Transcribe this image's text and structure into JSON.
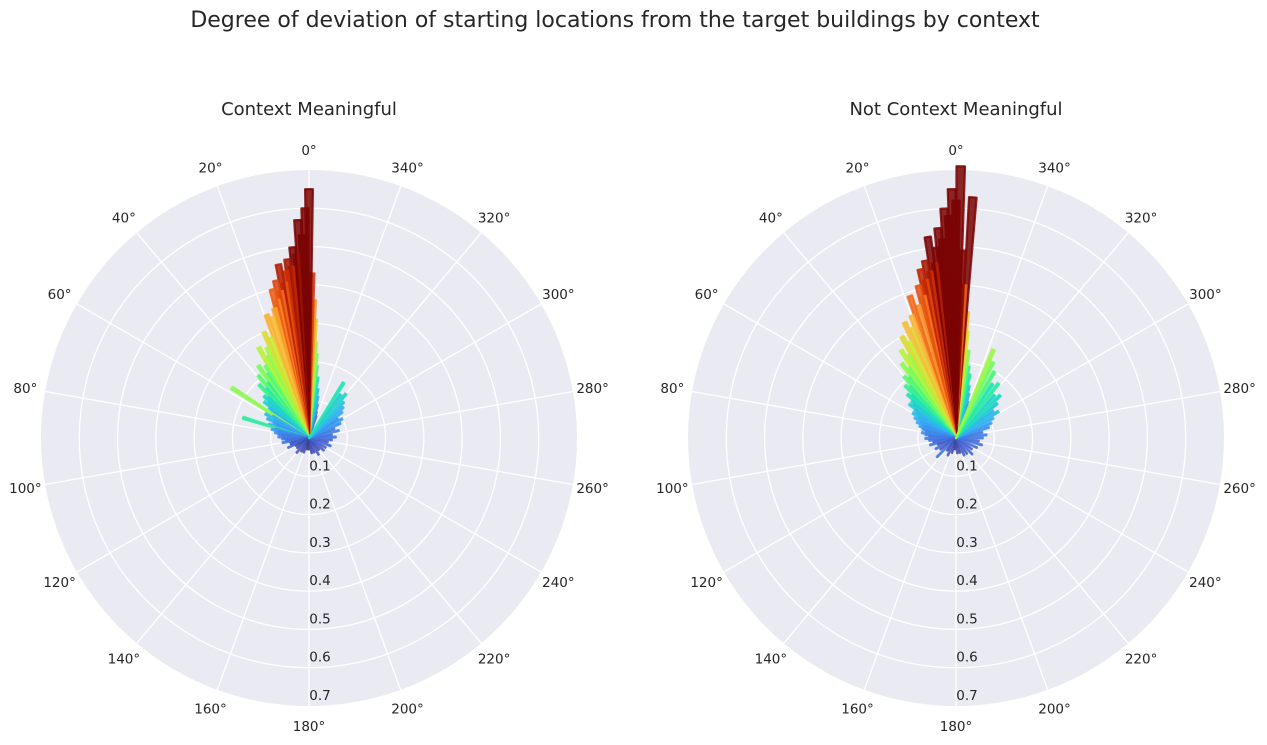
{
  "chart_data": {
    "title": "Degree of deviation of starting locations from the target buildings by context",
    "type": "polar-bar",
    "angle_ticks": [
      "0°",
      "20°",
      "40°",
      "60°",
      "80°",
      "100°",
      "120°",
      "140°",
      "160°",
      "180°",
      "200°",
      "220°",
      "240°",
      "260°",
      "280°",
      "300°",
      "320°",
      "340°"
    ],
    "angle_tick_values": [
      0,
      20,
      40,
      60,
      80,
      100,
      120,
      140,
      160,
      180,
      200,
      220,
      240,
      260,
      280,
      300,
      320,
      340
    ],
    "radial_ticks": [
      "0.1",
      "0.2",
      "0.3",
      "0.4",
      "0.5",
      "0.6",
      "0.7"
    ],
    "radial_tick_values": [
      0.1,
      0.2,
      0.3,
      0.4,
      0.5,
      0.6,
      0.7
    ],
    "rlim": [
      0,
      0.7
    ],
    "theta_zero_location": "N",
    "theta_direction": "counterclockwise",
    "grid": true,
    "colormap": [
      "#30123b",
      "#4662d7",
      "#36aaf9",
      "#1ae4b6",
      "#72fe5e",
      "#c8ef34",
      "#faba39",
      "#f66b19",
      "#ca2a04",
      "#7a0403"
    ],
    "panels": [
      {
        "title": "Context Meaningful",
        "bars": [
          {
            "angle": -18,
            "value": 0.06
          },
          {
            "angle": -16,
            "value": 0.07
          },
          {
            "angle": -14,
            "value": 0.09
          },
          {
            "angle": -12,
            "value": 0.11
          },
          {
            "angle": -10,
            "value": 0.13
          },
          {
            "angle": -8,
            "value": 0.16
          },
          {
            "angle": -6,
            "value": 0.19
          },
          {
            "angle": -5,
            "value": 0.22
          },
          {
            "angle": -4,
            "value": 0.25
          },
          {
            "angle": -3,
            "value": 0.31
          },
          {
            "angle": -2,
            "value": 0.36
          },
          {
            "angle": -1,
            "value": 0.43
          },
          {
            "angle": 0,
            "value": 0.65
          },
          {
            "angle": 1,
            "value": 0.6
          },
          {
            "angle": 2,
            "value": 0.53
          },
          {
            "angle": 3,
            "value": 0.57
          },
          {
            "angle": 4,
            "value": 0.48
          },
          {
            "angle": 5,
            "value": 0.5
          },
          {
            "angle": 6,
            "value": 0.45
          },
          {
            "angle": 7,
            "value": 0.47
          },
          {
            "angle": 8,
            "value": 0.44
          },
          {
            "angle": 9,
            "value": 0.41
          },
          {
            "angle": 10,
            "value": 0.46
          },
          {
            "angle": 11,
            "value": 0.39
          },
          {
            "angle": 12,
            "value": 0.42
          },
          {
            "angle": 13,
            "value": 0.37
          },
          {
            "angle": 14,
            "value": 0.4
          },
          {
            "angle": 15,
            "value": 0.35
          },
          {
            "angle": 17,
            "value": 0.33
          },
          {
            "angle": 19,
            "value": 0.34
          },
          {
            "angle": 21,
            "value": 0.28
          },
          {
            "angle": 23,
            "value": 0.3
          },
          {
            "angle": 25,
            "value": 0.26
          },
          {
            "angle": 27,
            "value": 0.24
          },
          {
            "angle": 29,
            "value": 0.27
          },
          {
            "angle": 31,
            "value": 0.22
          },
          {
            "angle": 33,
            "value": 0.2
          },
          {
            "angle": 35,
            "value": 0.23
          },
          {
            "angle": 37,
            "value": 0.18
          },
          {
            "angle": 39,
            "value": 0.21
          },
          {
            "angle": 41,
            "value": 0.17
          },
          {
            "angle": 43,
            "value": 0.19
          },
          {
            "angle": 45,
            "value": 0.15
          },
          {
            "angle": 47,
            "value": 0.16
          },
          {
            "angle": 49,
            "value": 0.14
          },
          {
            "angle": 51,
            "value": 0.15
          },
          {
            "angle": 53,
            "value": 0.13
          },
          {
            "angle": 55,
            "value": 0.12
          },
          {
            "angle": 57,
            "value": 0.24
          },
          {
            "angle": 59,
            "value": 0.11
          },
          {
            "angle": 61,
            "value": 0.13
          },
          {
            "angle": 63,
            "value": 0.1
          },
          {
            "angle": 65,
            "value": 0.12
          },
          {
            "angle": 67,
            "value": 0.1
          },
          {
            "angle": 69,
            "value": 0.09
          },
          {
            "angle": 71,
            "value": 0.11
          },
          {
            "angle": 73,
            "value": 0.18
          },
          {
            "angle": 75,
            "value": 0.09
          },
          {
            "angle": 77,
            "value": 0.1
          },
          {
            "angle": 79,
            "value": 0.08
          },
          {
            "angle": 81,
            "value": 0.09
          },
          {
            "angle": 83,
            "value": 0.08
          },
          {
            "angle": 85,
            "value": 0.07
          },
          {
            "angle": 88,
            "value": 0.08
          },
          {
            "angle": 92,
            "value": 0.07
          },
          {
            "angle": 96,
            "value": 0.06
          },
          {
            "angle": 100,
            "value": 0.07
          },
          {
            "angle": 105,
            "value": 0.05
          },
          {
            "angle": 110,
            "value": 0.05
          },
          {
            "angle": 115,
            "value": 0.06
          },
          {
            "angle": 120,
            "value": 0.04
          },
          {
            "angle": 130,
            "value": 0.04
          },
          {
            "angle": 140,
            "value": 0.05
          },
          {
            "angle": 150,
            "value": 0.04
          },
          {
            "angle": 160,
            "value": 0.04
          },
          {
            "angle": 170,
            "value": 0.03
          },
          {
            "angle": 180,
            "value": 0.03
          },
          {
            "angle": 190,
            "value": 0.04
          },
          {
            "angle": 200,
            "value": 0.04
          },
          {
            "angle": 210,
            "value": 0.05
          },
          {
            "angle": 220,
            "value": 0.04
          },
          {
            "angle": 230,
            "value": 0.05
          },
          {
            "angle": 240,
            "value": 0.05
          },
          {
            "angle": 250,
            "value": 0.06
          },
          {
            "angle": 258,
            "value": 0.05
          },
          {
            "angle": 265,
            "value": 0.06
          },
          {
            "angle": 272,
            "value": 0.07
          },
          {
            "angle": 278,
            "value": 0.06
          },
          {
            "angle": 284,
            "value": 0.08
          },
          {
            "angle": 290,
            "value": 0.07
          },
          {
            "angle": 295,
            "value": 0.09
          },
          {
            "angle": 300,
            "value": 0.1
          },
          {
            "angle": 304,
            "value": 0.09
          },
          {
            "angle": 308,
            "value": 0.11
          },
          {
            "angle": 312,
            "value": 0.12
          },
          {
            "angle": 316,
            "value": 0.13
          },
          {
            "angle": 320,
            "value": 0.15
          },
          {
            "angle": 324,
            "value": 0.14
          },
          {
            "angle": 328,
            "value": 0.17
          }
        ]
      },
      {
        "title": "Not Context Meaningful",
        "bars": [
          {
            "angle": -20,
            "value": 0.09
          },
          {
            "angle": -18,
            "value": 0.1
          },
          {
            "angle": -16,
            "value": 0.12
          },
          {
            "angle": -14,
            "value": 0.14
          },
          {
            "angle": -12,
            "value": 0.17
          },
          {
            "angle": -10,
            "value": 0.19
          },
          {
            "angle": -8,
            "value": 0.23
          },
          {
            "angle": -6,
            "value": 0.28
          },
          {
            "angle": -5,
            "value": 0.33
          },
          {
            "angle": -4,
            "value": 0.63
          },
          {
            "angle": -3,
            "value": 0.4
          },
          {
            "angle": -2,
            "value": 0.49
          },
          {
            "angle": -1,
            "value": 0.71
          },
          {
            "angle": 0,
            "value": 0.62
          },
          {
            "angle": 1,
            "value": 0.65
          },
          {
            "angle": 2,
            "value": 0.58
          },
          {
            "angle": 3,
            "value": 0.6
          },
          {
            "angle": 4,
            "value": 0.52
          },
          {
            "angle": 5,
            "value": 0.55
          },
          {
            "angle": 6,
            "value": 0.5
          },
          {
            "angle": 7,
            "value": 0.46
          },
          {
            "angle": 8,
            "value": 0.53
          },
          {
            "angle": 9,
            "value": 0.44
          },
          {
            "angle": 10,
            "value": 0.47
          },
          {
            "angle": 11,
            "value": 0.42
          },
          {
            "angle": 12,
            "value": 0.45
          },
          {
            "angle": 13,
            "value": 0.38
          },
          {
            "angle": 14,
            "value": 0.41
          },
          {
            "angle": 16,
            "value": 0.36
          },
          {
            "angle": 18,
            "value": 0.39
          },
          {
            "angle": 20,
            "value": 0.34
          },
          {
            "angle": 22,
            "value": 0.31
          },
          {
            "angle": 24,
            "value": 0.33
          },
          {
            "angle": 26,
            "value": 0.28
          },
          {
            "angle": 28,
            "value": 0.3
          },
          {
            "angle": 30,
            "value": 0.25
          },
          {
            "angle": 32,
            "value": 0.27
          },
          {
            "angle": 34,
            "value": 0.22
          },
          {
            "angle": 36,
            "value": 0.24
          },
          {
            "angle": 38,
            "value": 0.2
          },
          {
            "angle": 40,
            "value": 0.21
          },
          {
            "angle": 42,
            "value": 0.18
          },
          {
            "angle": 44,
            "value": 0.19
          },
          {
            "angle": 46,
            "value": 0.16
          },
          {
            "angle": 48,
            "value": 0.17
          },
          {
            "angle": 50,
            "value": 0.15
          },
          {
            "angle": 52,
            "value": 0.14
          },
          {
            "angle": 54,
            "value": 0.15
          },
          {
            "angle": 56,
            "value": 0.13
          },
          {
            "angle": 58,
            "value": 0.12
          },
          {
            "angle": 60,
            "value": 0.13
          },
          {
            "angle": 62,
            "value": 0.11
          },
          {
            "angle": 64,
            "value": 0.12
          },
          {
            "angle": 66,
            "value": 0.1
          },
          {
            "angle": 68,
            "value": 0.11
          },
          {
            "angle": 70,
            "value": 0.09
          },
          {
            "angle": 72,
            "value": 0.1
          },
          {
            "angle": 75,
            "value": 0.09
          },
          {
            "angle": 78,
            "value": 0.08
          },
          {
            "angle": 81,
            "value": 0.09
          },
          {
            "angle": 84,
            "value": 0.08
          },
          {
            "angle": 87,
            "value": 0.07
          },
          {
            "angle": 91,
            "value": 0.08
          },
          {
            "angle": 95,
            "value": 0.07
          },
          {
            "angle": 100,
            "value": 0.06
          },
          {
            "angle": 105,
            "value": 0.07
          },
          {
            "angle": 110,
            "value": 0.05
          },
          {
            "angle": 118,
            "value": 0.06
          },
          {
            "angle": 126,
            "value": 0.05
          },
          {
            "angle": 135,
            "value": 0.07
          },
          {
            "angle": 145,
            "value": 0.04
          },
          {
            "angle": 155,
            "value": 0.05
          },
          {
            "angle": 165,
            "value": 0.04
          },
          {
            "angle": 175,
            "value": 0.03
          },
          {
            "angle": 185,
            "value": 0.04
          },
          {
            "angle": 195,
            "value": 0.04
          },
          {
            "angle": 205,
            "value": 0.05
          },
          {
            "angle": 215,
            "value": 0.05
          },
          {
            "angle": 225,
            "value": 0.06
          },
          {
            "angle": 235,
            "value": 0.05
          },
          {
            "angle": 245,
            "value": 0.06
          },
          {
            "angle": 255,
            "value": 0.07
          },
          {
            "angle": 262,
            "value": 0.06
          },
          {
            "angle": 270,
            "value": 0.07
          },
          {
            "angle": 276,
            "value": 0.08
          },
          {
            "angle": 282,
            "value": 0.07
          },
          {
            "angle": 288,
            "value": 0.09
          },
          {
            "angle": 293,
            "value": 0.1
          },
          {
            "angle": 298,
            "value": 0.11
          },
          {
            "angle": 302,
            "value": 0.13
          },
          {
            "angle": 306,
            "value": 0.12
          },
          {
            "angle": 310,
            "value": 0.14
          },
          {
            "angle": 314,
            "value": 0.16
          },
          {
            "angle": 318,
            "value": 0.15
          },
          {
            "angle": 322,
            "value": 0.18
          },
          {
            "angle": 326,
            "value": 0.17
          },
          {
            "angle": 330,
            "value": 0.2
          },
          {
            "angle": 334,
            "value": 0.22
          },
          {
            "angle": 337,
            "value": 0.25
          }
        ]
      }
    ]
  }
}
